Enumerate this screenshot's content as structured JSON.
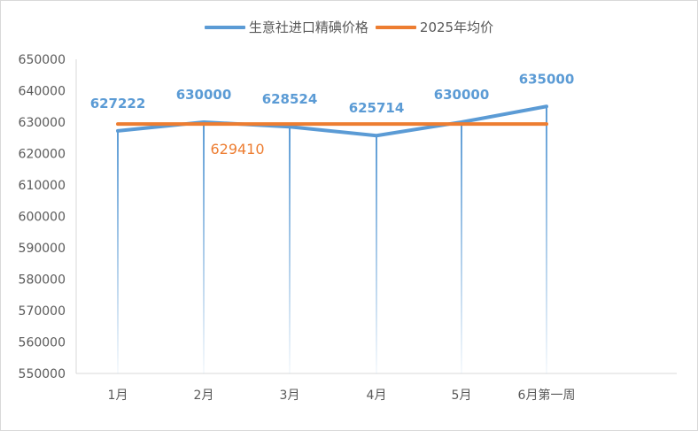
{
  "chart_data": {
    "type": "line",
    "categories": [
      "1月",
      "2月",
      "3月",
      "4月",
      "5月",
      "6月第一周"
    ],
    "series": [
      {
        "name": "生意社进口精碘价格",
        "values": [
          627222,
          630000,
          628524,
          625714,
          630000,
          635000
        ],
        "color": "#5b9bd5",
        "data_labels": [
          "627222",
          "630000",
          "628524",
          "625714",
          "630000",
          "635000"
        ]
      },
      {
        "name": "2025年均价",
        "values": [
          629410,
          629410,
          629410,
          629410,
          629410,
          629410
        ],
        "color": "#ed7d31",
        "data_label": "629410"
      }
    ],
    "ylim": [
      550000,
      650000
    ],
    "yticks": [
      "550000",
      "560000",
      "570000",
      "580000",
      "590000",
      "600000",
      "610000",
      "620000",
      "630000",
      "640000",
      "650000"
    ],
    "legend_position": "top",
    "grid": false
  }
}
